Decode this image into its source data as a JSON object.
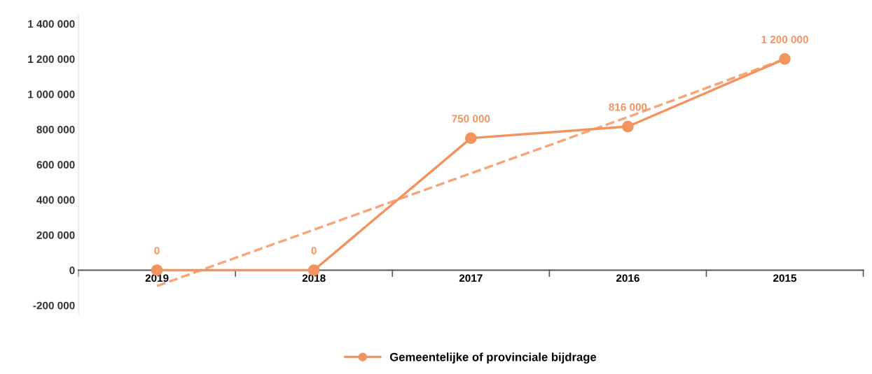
{
  "chart_data": {
    "type": "line",
    "categories": [
      "2019",
      "2018",
      "2017",
      "2016",
      "2015"
    ],
    "series": [
      {
        "name": "Gemeentelijke of provinciale bijdrage",
        "color": "#f39460",
        "values": [
          0,
          0,
          750000,
          816000,
          1200000
        ],
        "value_labels": [
          "0",
          "0",
          "750 000",
          "816 000",
          "1 200 000"
        ],
        "marker": "circle",
        "line_style": "solid"
      },
      {
        "type": "line",
        "color": "#f5a67a",
        "values": [
          -90000,
          230000,
          550000,
          870000,
          1200000
        ],
        "marker": "none",
        "line_style": "dashed"
      }
    ],
    "ylim": [
      -250000,
      1450000
    ],
    "yticks": [
      {
        "value": -200000,
        "label": "-200 000"
      },
      {
        "value": 0,
        "label": "0"
      },
      {
        "value": 200000,
        "label": "200 000"
      },
      {
        "value": 400000,
        "label": "400 000"
      },
      {
        "value": 600000,
        "label": "600 000"
      },
      {
        "value": 800000,
        "label": "800 000"
      },
      {
        "value": 1000000,
        "label": "1 000 000"
      },
      {
        "value": 1200000,
        "label": "1 200 000"
      },
      {
        "value": 1400000,
        "label": "1 400 000"
      }
    ],
    "grid": false,
    "legend": "bottom"
  }
}
